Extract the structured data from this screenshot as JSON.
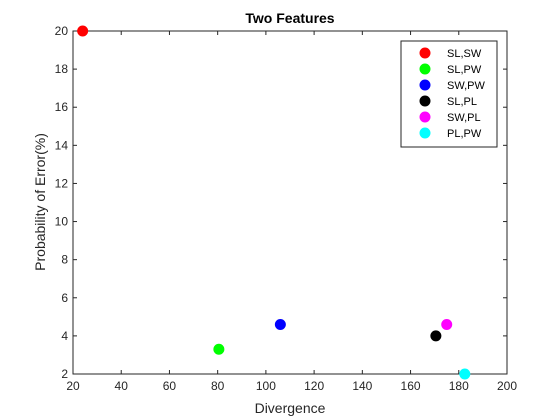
{
  "chart_data": {
    "type": "scatter",
    "title": "Two Features",
    "xlabel": "Divergence",
    "ylabel": "Probability of Error(%)",
    "xlim": [
      20,
      200
    ],
    "ylim": [
      2,
      20
    ],
    "xticks": [
      20,
      40,
      60,
      80,
      100,
      120,
      140,
      160,
      180,
      200
    ],
    "yticks": [
      2,
      4,
      6,
      8,
      10,
      12,
      14,
      16,
      18,
      20
    ],
    "grid": false,
    "legend_position": "top-right",
    "series": [
      {
        "name": "SL,SW",
        "color": "#ff0000",
        "x": [
          24
        ],
        "y": [
          20
        ]
      },
      {
        "name": "SL,PW",
        "color": "#00ff00",
        "x": [
          80.5
        ],
        "y": [
          3.3
        ]
      },
      {
        "name": "SW,PW",
        "color": "#0000ff",
        "x": [
          106
        ],
        "y": [
          4.6
        ]
      },
      {
        "name": "SL,PL",
        "color": "#000000",
        "x": [
          170.5
        ],
        "y": [
          4.0
        ]
      },
      {
        "name": "SW,PL",
        "color": "#ff00ff",
        "x": [
          175
        ],
        "y": [
          4.6
        ]
      },
      {
        "name": "PL,PW",
        "color": "#00ffff",
        "x": [
          182.5
        ],
        "y": [
          2.0
        ]
      }
    ]
  }
}
